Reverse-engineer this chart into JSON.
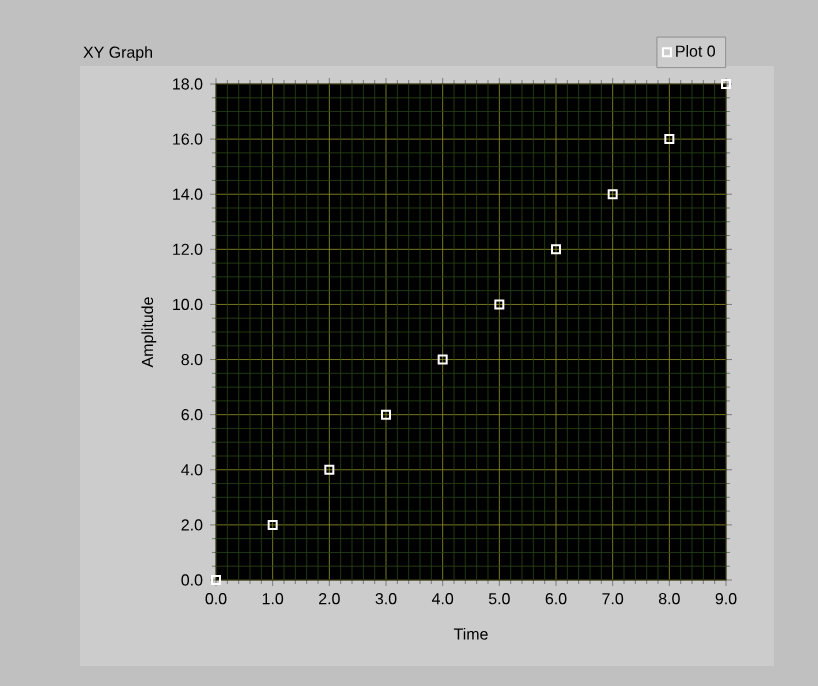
{
  "chart_data": {
    "type": "scatter",
    "title": "XY Graph",
    "xlabel": "Time",
    "ylabel": "Amplitude",
    "x": [
      0,
      1,
      2,
      3,
      4,
      5,
      6,
      7,
      8,
      9
    ],
    "series": [
      {
        "name": "Plot 0",
        "color": "#ffffff",
        "values": [
          0,
          2,
          4,
          6,
          8,
          10,
          12,
          14,
          16,
          18
        ]
      }
    ],
    "xlim": [
      0,
      9
    ],
    "ylim": [
      0,
      18
    ],
    "xticks": [
      {
        "value": 0,
        "label": "0.0"
      },
      {
        "value": 1,
        "label": "1.0"
      },
      {
        "value": 2,
        "label": "2.0"
      },
      {
        "value": 3,
        "label": "3.0"
      },
      {
        "value": 4,
        "label": "4.0"
      },
      {
        "value": 5,
        "label": "5.0"
      },
      {
        "value": 6,
        "label": "6.0"
      },
      {
        "value": 7,
        "label": "7.0"
      },
      {
        "value": 8,
        "label": "8.0"
      },
      {
        "value": 9,
        "label": "9.0"
      },
      {
        "value": 0.2,
        "label": null
      },
      {
        "value": 0.4,
        "label": null
      },
      {
        "value": 0.6,
        "label": null
      },
      {
        "value": 0.8,
        "label": null
      },
      {
        "value": 1.2,
        "label": null
      },
      {
        "value": 1.4,
        "label": null
      },
      {
        "value": 1.6,
        "label": null
      },
      {
        "value": 1.8,
        "label": null
      },
      {
        "value": 2.2,
        "label": null
      },
      {
        "value": 2.4,
        "label": null
      },
      {
        "value": 2.6,
        "label": null
      },
      {
        "value": 2.8,
        "label": null
      },
      {
        "value": 3.2,
        "label": null
      },
      {
        "value": 3.4,
        "label": null
      },
      {
        "value": 3.6,
        "label": null
      },
      {
        "value": 3.8,
        "label": null
      },
      {
        "value": 4.2,
        "label": null
      },
      {
        "value": 4.4,
        "label": null
      },
      {
        "value": 4.6,
        "label": null
      },
      {
        "value": 4.8,
        "label": null
      },
      {
        "value": 5.2,
        "label": null
      },
      {
        "value": 5.4,
        "label": null
      },
      {
        "value": 5.6,
        "label": null
      },
      {
        "value": 5.8,
        "label": null
      },
      {
        "value": 6.2,
        "label": null
      },
      {
        "value": 6.4,
        "label": null
      },
      {
        "value": 6.6,
        "label": null
      },
      {
        "value": 6.8,
        "label": null
      },
      {
        "value": 7.2,
        "label": null
      },
      {
        "value": 7.4,
        "label": null
      },
      {
        "value": 7.6,
        "label": null
      },
      {
        "value": 7.8,
        "label": null
      },
      {
        "value": 8.2,
        "label": null
      },
      {
        "value": 8.4,
        "label": null
      },
      {
        "value": 8.6,
        "label": null
      },
      {
        "value": 8.8,
        "label": null
      }
    ],
    "yticks": [
      {
        "value": 0,
        "label": "0.0"
      },
      {
        "value": 2,
        "label": "2.0"
      },
      {
        "value": 4,
        "label": "4.0"
      },
      {
        "value": 6,
        "label": "6.0"
      },
      {
        "value": 8,
        "label": "8.0"
      },
      {
        "value": 10,
        "label": "10.0"
      },
      {
        "value": 12,
        "label": "12.0"
      },
      {
        "value": 14,
        "label": "14.0"
      },
      {
        "value": 16,
        "label": "16.0"
      },
      {
        "value": 18,
        "label": "18.0"
      },
      {
        "value": 0.5,
        "label": null
      },
      {
        "value": 1,
        "label": null
      },
      {
        "value": 1.5,
        "label": null
      },
      {
        "value": 2.5,
        "label": null
      },
      {
        "value": 3,
        "label": null
      },
      {
        "value": 3.5,
        "label": null
      },
      {
        "value": 4.5,
        "label": null
      },
      {
        "value": 5,
        "label": null
      },
      {
        "value": 5.5,
        "label": null
      },
      {
        "value": 6.5,
        "label": null
      },
      {
        "value": 7,
        "label": null
      },
      {
        "value": 7.5,
        "label": null
      },
      {
        "value": 8.5,
        "label": null
      },
      {
        "value": 9,
        "label": null
      },
      {
        "value": 9.5,
        "label": null
      },
      {
        "value": 10.5,
        "label": null
      },
      {
        "value": 11,
        "label": null
      },
      {
        "value": 11.5,
        "label": null
      },
      {
        "value": 12.5,
        "label": null
      },
      {
        "value": 13,
        "label": null
      },
      {
        "value": 13.5,
        "label": null
      },
      {
        "value": 14.5,
        "label": null
      },
      {
        "value": 15,
        "label": null
      },
      {
        "value": 15.5,
        "label": null
      },
      {
        "value": 16.5,
        "label": null
      },
      {
        "value": 17,
        "label": null
      },
      {
        "value": 17.5,
        "label": null
      }
    ],
    "grid": true,
    "legend": "top right",
    "marker": "square"
  }
}
